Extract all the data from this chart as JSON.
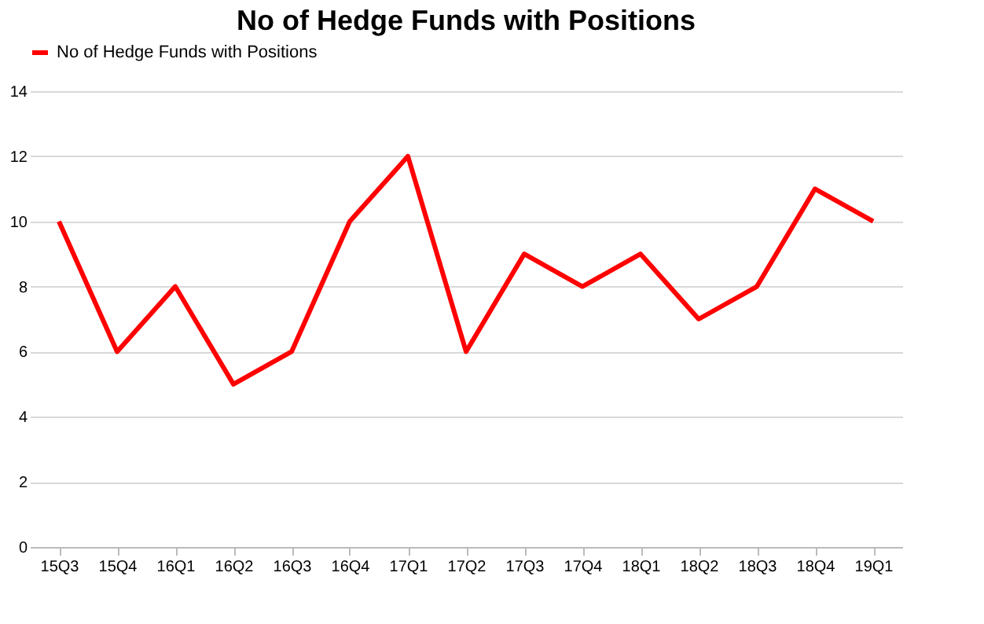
{
  "chart_data": {
    "type": "line",
    "title": "No of Hedge Funds with Positions",
    "categories": [
      "15Q3",
      "15Q4",
      "16Q1",
      "16Q2",
      "16Q3",
      "16Q4",
      "17Q1",
      "17Q2",
      "17Q3",
      "17Q4",
      "18Q1",
      "18Q2",
      "18Q3",
      "18Q4",
      "19Q1"
    ],
    "series": [
      {
        "name": "No of Hedge Funds with Positions",
        "color": "#ff0000",
        "values": [
          10,
          6,
          8,
          5,
          6,
          10,
          12,
          6,
          9,
          8,
          9,
          7,
          8,
          11,
          10
        ]
      }
    ],
    "ylim": [
      0,
      14
    ],
    "yticks": [
      0,
      2,
      4,
      6,
      8,
      10,
      12,
      14
    ],
    "grid": "y",
    "legend": "top",
    "marker": "none",
    "line_style": "solid"
  }
}
